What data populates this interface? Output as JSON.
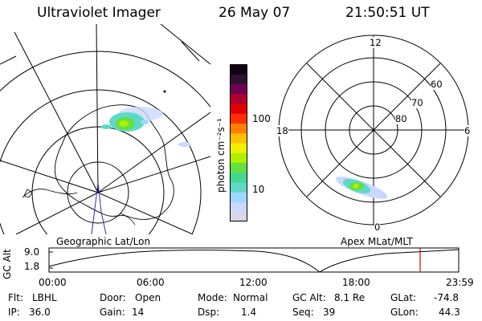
{
  "header": {
    "instrument": "Ultraviolet Imager",
    "date": "26 May 07",
    "time": "21:50:51 UT"
  },
  "colorbar": {
    "unit_label": "photon cm⁻²s⁻¹",
    "tick_100": "100",
    "tick_10": "10",
    "colors": [
      "#d8d8e8",
      "#c8d8ff",
      "#9fd7ff",
      "#5fd8c8",
      "#40d890",
      "#64e040",
      "#aef000",
      "#f0f000",
      "#ffc000",
      "#ff8000",
      "#ff3000",
      "#e00000",
      "#b00030",
      "#700050",
      "#301030",
      "#100010"
    ]
  },
  "left_map": {
    "caption": "Geographic Lat/Lon"
  },
  "right_map": {
    "caption": "Apex MLat/MLT",
    "mlt_12": "12",
    "mlt_18": "18",
    "mlt_6": "6",
    "mlt_0": "0",
    "lat_60": "60",
    "lat_70": "70",
    "lat_80": "80"
  },
  "altitude_plot": {
    "ylabel": "GC Alt",
    "ytick_top": "9.0",
    "ytick_bottom": "1.8",
    "xticks": [
      "00:00",
      "06:00",
      "12:00",
      "18:00",
      "23:59"
    ],
    "marker_color": "#e00000"
  },
  "footer": {
    "flt_label": "Flt:",
    "flt_value": "LBHL",
    "ip_label": "IP:",
    "ip_value": "36.0",
    "door_label": "Door:",
    "door_value": "Open",
    "gain_label": "Gain:",
    "gain_value": "14",
    "mode_label": "Mode:",
    "mode_value": "Normal",
    "dsp_label": "Dsp:",
    "dsp_value": "1.4",
    "gcalt_label": "GC Alt:",
    "gcalt_value": "8.1 Re",
    "seq_label": "Seq:",
    "seq_value": "39",
    "glat_label": "GLat:",
    "glat_value": "-74.8",
    "glon_label": "GLon:",
    "glon_value": "44.3"
  }
}
